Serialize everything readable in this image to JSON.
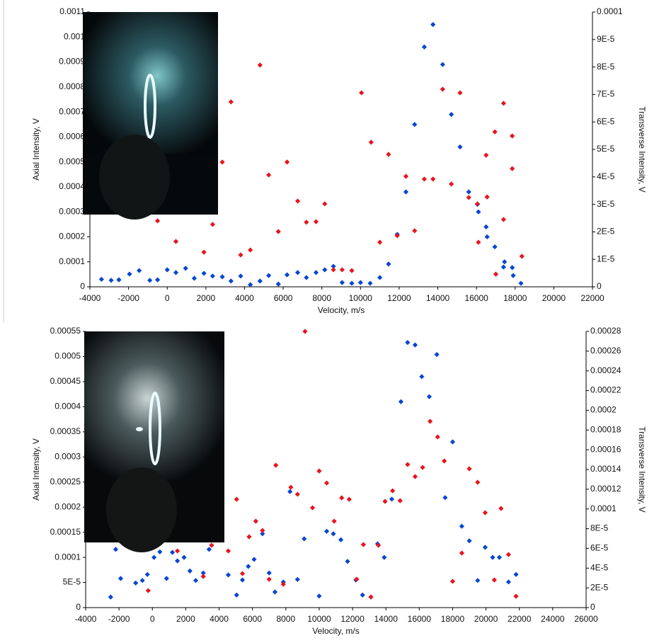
{
  "chart_data": [
    {
      "type": "scatter",
      "xlabel": "Velocity, m/s",
      "ylabel": "Axial Intensity, V",
      "y2label": "Transverse Intensity, V",
      "xlim": [
        -4000,
        22000
      ],
      "xticks": [
        -4000,
        -2000,
        0,
        2000,
        4000,
        6000,
        8000,
        10000,
        12000,
        14000,
        16000,
        18000,
        20000,
        22000
      ],
      "ylim": [
        0,
        0.0011
      ],
      "yticks": [
        0,
        0.0001,
        0.0002,
        0.0003,
        0.0004,
        0.0005,
        0.0006,
        0.0007,
        0.0008,
        0.0009,
        0.001,
        0.0011
      ],
      "y2lim": [
        0,
        0.0001
      ],
      "y2ticks": [
        0,
        {
          "value": 1e-05,
          "label": "1E-5"
        },
        {
          "value": 2e-05,
          "label": "2E-5"
        },
        {
          "value": 3e-05,
          "label": "3E-5"
        },
        {
          "value": 4e-05,
          "label": "4E-5"
        },
        {
          "value": 5e-05,
          "label": "5E-5"
        },
        {
          "value": 6e-05,
          "label": "6E-5"
        },
        {
          "value": 7e-05,
          "label": "7E-5"
        },
        {
          "value": 8e-05,
          "label": "8E-5"
        },
        {
          "value": 9e-05,
          "label": "9E-5"
        },
        0.0001
      ],
      "series": [
        {
          "color": "#0a46d2",
          "x": [
            -3400,
            -2900,
            -2500,
            -1950,
            -1450,
            -900,
            -500,
            0,
            450,
            950,
            1400,
            1900,
            2350,
            2850,
            3300,
            3800,
            4300,
            4800,
            5250,
            5750,
            6200,
            6750,
            7200,
            7700,
            8150,
            8600,
            9050,
            9550,
            10000,
            10500,
            11000,
            11450,
            11900,
            12350,
            12800,
            13300,
            13750,
            14250,
            14700,
            15150,
            15600,
            16050,
            16100,
            16500,
            16550,
            16950,
            17400,
            17450,
            17850,
            17900,
            18300
          ],
          "values": [
            3e-05,
            2.6e-05,
            2.8e-05,
            5.1e-05,
            6.5e-05,
            2.6e-05,
            2.8e-05,
            6.8e-05,
            5.7e-05,
            7.4e-05,
            3.4e-05,
            5.4e-05,
            4.3e-05,
            4e-05,
            2.3e-05,
            4.3e-05,
            8.5e-06,
            2.3e-05,
            4.5e-05,
            1.1e-05,
            4.8e-05,
            5.7e-05,
            3.7e-05,
            5.7e-05,
            6.8e-05,
            8.2e-05,
            1.7e-05,
            1.4e-05,
            1.7e-05,
            1.4e-05,
            3.7e-05,
            9.1e-05,
            0.00021,
            0.00038,
            0.00065,
            0.00096,
            0.00105,
            0.00089,
            0.00069,
            0.00056,
            0.00038,
            0.00033,
            0.0003,
            0.00024,
            0.0002,
            0.00016,
            7.9e-05,
            0.0001,
            7.7e-05,
            4.5e-05,
            1.4e-05
          ]
        },
        {
          "color": "#e8141e",
          "axis": "y2",
          "x": [
            -500,
            450,
            1900,
            2350,
            2850,
            3300,
            3800,
            4300,
            4800,
            5250,
            5750,
            6200,
            6750,
            7200,
            7700,
            8150,
            8600,
            9050,
            9550,
            10050,
            10550,
            11000,
            11450,
            11900,
            12350,
            12800,
            13300,
            13750,
            14250,
            14700,
            15150,
            15600,
            16050,
            16100,
            16500,
            16550,
            16950,
            17000,
            17400,
            17400,
            17850,
            17850,
            18350
          ],
          "values": [
            2.4e-05,
            1.65e-05,
            1.26e-05,
            2.27e-05,
            4.54e-05,
            6.73e-05,
            1.16e-05,
            1.34e-05,
            8.07e-05,
            4.07e-05,
            2.01e-05,
            4.54e-05,
            3.12e-05,
            2.35e-05,
            2.37e-05,
            3.02e-05,
            6.2e-06,
            6.2e-06,
            5.9e-06,
            7.06e-05,
            5.26e-05,
            1.62e-05,
            4.82e-05,
            1.86e-05,
            4.02e-05,
            2.04e-05,
            3.92e-05,
            3.92e-05,
            7.19e-05,
            3.74e-05,
            7.06e-05,
            3.25e-05,
            3.02e-05,
            1.62e-05,
            4.79e-05,
            3.27e-05,
            5.64e-05,
            4.6e-06,
            6.68e-05,
            2.45e-05,
            5.49e-05,
            4.3e-05,
            1.11e-05
          ]
        }
      ]
    },
    {
      "type": "scatter",
      "xlabel": "Velocity, m/s",
      "ylabel": "Axial Intensity, V",
      "y2label": "Transverse Intensity, V",
      "xlim": [
        -4000,
        26000
      ],
      "xticks": [
        -4000,
        -2000,
        0,
        2000,
        4000,
        6000,
        8000,
        10000,
        12000,
        14000,
        16000,
        18000,
        20000,
        22000,
        24000,
        26000
      ],
      "ylim": [
        0,
        0.00055
      ],
      "yticks": [
        0,
        {
          "value": 5e-05,
          "label": "5E-5"
        },
        0.0001,
        0.00015,
        0.0002,
        0.00025,
        0.0003,
        0.00035,
        0.0004,
        0.00045,
        0.0005,
        0.00055
      ],
      "y2lim": [
        0,
        0.00028
      ],
      "y2ticks": [
        0,
        {
          "value": 2e-05,
          "label": "2E-5"
        },
        {
          "value": 4e-05,
          "label": "4E-5"
        },
        {
          "value": 6e-05,
          "label": "6E-5"
        },
        {
          "value": 8e-05,
          "label": "8E-5"
        },
        0.0001,
        0.00012,
        0.00014,
        0.00016,
        0.00018,
        0.0002,
        0.00022,
        0.00024,
        0.00026,
        0.00028
      ],
      "series": [
        {
          "color": "#0a46d2",
          "x": [
            -2500,
            -2200,
            -1900,
            -1000,
            -600,
            -300,
            100,
            450,
            850,
            1200,
            1500,
            1900,
            2250,
            2600,
            3050,
            3400,
            4550,
            5050,
            5400,
            5750,
            6100,
            6600,
            7000,
            7350,
            7850,
            8250,
            8700,
            9100,
            10000,
            10450,
            10850,
            11300,
            11700,
            12200,
            12600,
            13100,
            13500,
            13900,
            14350,
            14900,
            15300,
            15750,
            16150,
            16600,
            17050,
            17550,
            18000,
            18550,
            19000,
            19500,
            19950,
            20400,
            20800,
            21350,
            21800
          ],
          "values": [
            2.1e-05,
            0.000116,
            5.8e-05,
            4.9e-05,
            5.4e-05,
            6.6e-05,
            0.0001,
            0.000111,
            5.8e-05,
            0.00011,
            9.3e-05,
            0.0001,
            7.3e-05,
            5.4e-05,
            6.9e-05,
            0.000116,
            6.5e-05,
            2.5e-05,
            5.5e-05,
            8.2e-05,
            9.6e-05,
            0.000147,
            6.9e-05,
            3.1e-05,
            5.1e-05,
            0.000231,
            5.6e-05,
            0.000137,
            2.3e-05,
            0.000152,
            0.000147,
            0.000135,
            9.2e-05,
            5.5e-05,
            2.5e-05,
            2.1e-05,
            0.000127,
            0.0001,
            0.000216,
            0.00041,
            0.000528,
            0.000523,
            0.00046,
            0.00042,
            0.000504,
            0.000219,
            0.00033,
            0.000162,
            0.000133,
            5.4e-05,
            0.00012,
            0.0001,
            0.0001,
            5.1e-05,
            6.6e-05
          ]
        },
        {
          "color": "#e8141e",
          "axis": "y2",
          "x": [
            -250,
            1500,
            3050,
            3550,
            4550,
            5050,
            5400,
            5800,
            6200,
            6600,
            7000,
            7400,
            7850,
            8300,
            8700,
            9150,
            9600,
            10000,
            10450,
            10900,
            11350,
            11800,
            12250,
            12650,
            13100,
            13550,
            13950,
            14400,
            14850,
            15300,
            15750,
            16200,
            16650,
            17100,
            17500,
            18000,
            18550,
            19000,
            19500,
            19950,
            20500,
            20900,
            21350,
            21800
          ],
          "values": [
            1.72e-05,
            5.74e-05,
            3.16e-05,
            6.32e-05,
            5.74e-05,
            0.0001098,
            3.45e-05,
            7.18e-05,
            8.76e-05,
            7.82e-05,
            2.87e-05,
            0.0001443,
            2.37e-05,
            0.000122,
            0.0001149,
            0.00028,
            0.0001012,
            0.0001385,
            0.0001263,
            8.76e-05,
            0.0001113,
            0.0001098,
            2.87e-05,
            6.39e-05,
            1.08e-05,
            6.32e-05,
            0.0001077,
            0.0001184,
            0.0001084,
            0.000145,
            0.0001328,
            0.0001421,
            0.0001888,
            0.000173,
            0.0001486,
            2.66e-05,
            5.53e-05,
            0.0001407,
            0.0001271,
            9.62e-05,
            2.8e-05,
            0.0001005,
            5.38e-05,
            1.15e-05
          ]
        }
      ]
    }
  ]
}
